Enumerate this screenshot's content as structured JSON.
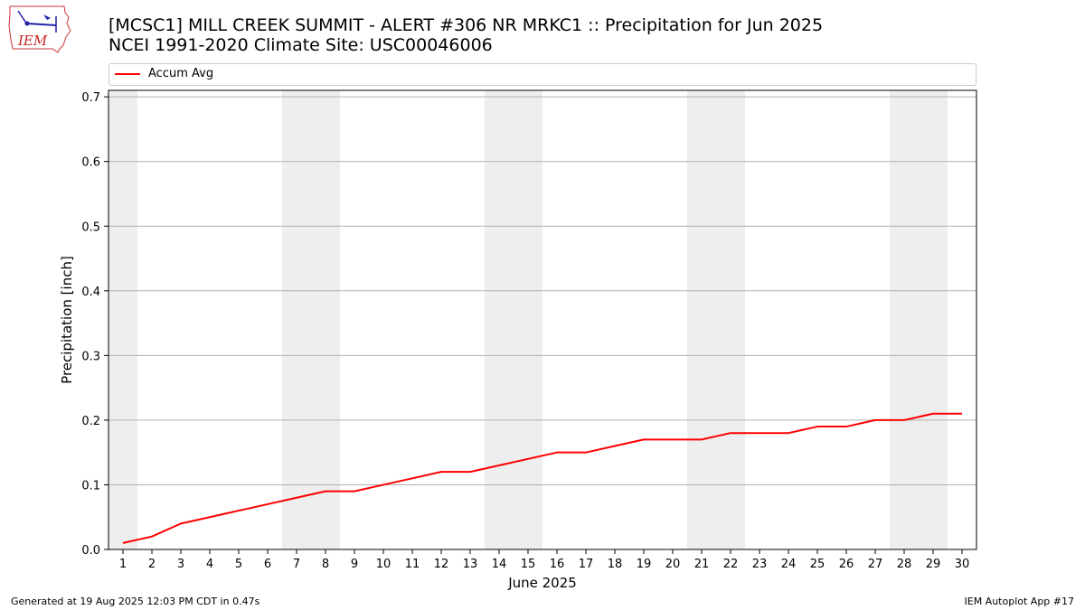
{
  "header": {
    "logo_text": "IEM",
    "title_line1": "[MCSC1] MILL CREEK SUMMIT - ALERT #306 NR MRKC1 :: Precipitation for Jun 2025",
    "title_line2": "NCEI 1991-2020 Climate Site: USC00046006"
  },
  "colors": {
    "series_line": "#ff0000",
    "weekend_shade": "#eeeeee",
    "grid": "#b0b0b0"
  },
  "chart_data": {
    "type": "line",
    "title": "[MCSC1] MILL CREEK SUMMIT - ALERT #306 NR MRKC1 :: Precipitation for Jun 2025",
    "subtitle": "NCEI 1991-2020 Climate Site: USC00046006",
    "xlabel": "June 2025",
    "ylabel": "Precipitation [inch]",
    "legend_position": "top, above plot",
    "grid": "horizontal",
    "xlim": [
      0.5,
      30.5
    ],
    "ylim": [
      0,
      0.71
    ],
    "x_ticks": [
      1,
      2,
      3,
      4,
      5,
      6,
      7,
      8,
      9,
      10,
      11,
      12,
      13,
      14,
      15,
      16,
      17,
      18,
      19,
      20,
      21,
      22,
      23,
      24,
      25,
      26,
      27,
      28,
      29,
      30
    ],
    "y_ticks": [
      0.0,
      0.1,
      0.2,
      0.3,
      0.4,
      0.5,
      0.6,
      0.7
    ],
    "y_tick_labels": [
      "0.0",
      "0.1",
      "0.2",
      "0.3",
      "0.4",
      "0.5",
      "0.6",
      "0.7"
    ],
    "weekend_days": [
      1,
      7,
      8,
      14,
      15,
      21,
      22,
      28,
      29
    ],
    "series": [
      {
        "name": "Accum Avg",
        "color": "#ff0000",
        "x": [
          1,
          2,
          3,
          4,
          5,
          6,
          7,
          8,
          9,
          10,
          11,
          12,
          13,
          14,
          15,
          16,
          17,
          18,
          19,
          20,
          21,
          22,
          23,
          24,
          25,
          26,
          27,
          28,
          29,
          30
        ],
        "values": [
          0.01,
          0.02,
          0.04,
          0.05,
          0.06,
          0.07,
          0.08,
          0.09,
          0.09,
          0.1,
          0.11,
          0.12,
          0.12,
          0.13,
          0.14,
          0.15,
          0.15,
          0.16,
          0.17,
          0.17,
          0.17,
          0.18,
          0.18,
          0.18,
          0.19,
          0.19,
          0.2,
          0.2,
          0.21,
          0.21
        ]
      }
    ]
  },
  "footer": {
    "generated": "Generated at 19 Aug 2025 12:03 PM CDT in 0.47s",
    "app": "IEM Autoplot App #17"
  }
}
